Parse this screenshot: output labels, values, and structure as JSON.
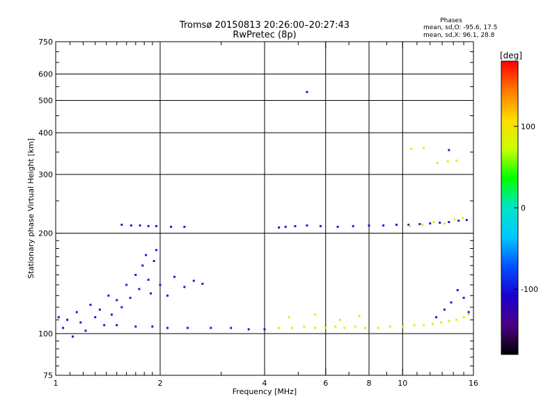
{
  "chart_data": {
    "type": "scatter",
    "title": "Tromsø 20150813 20:26:00–20:27:43",
    "subtitle": "RwPretec (8p)",
    "xlabel": "Frequency [MHz]",
    "ylabel": "Stationary phase Virtual Height [km]",
    "x_scale": "log",
    "y_scale": "log",
    "xlim": [
      1,
      16
    ],
    "ylim": [
      75,
      750
    ],
    "grid": true,
    "x_major_ticks": [
      1,
      2,
      4,
      6,
      8,
      10,
      16
    ],
    "x_tick_labels": [
      "1",
      "2",
      "4",
      "6",
      "8",
      "10",
      "16"
    ],
    "x_grid_lines": [
      2,
      4,
      6,
      8,
      10
    ],
    "x_minor_ticks": [
      1.1,
      1.2,
      1.3,
      1.4,
      1.5,
      1.6,
      1.7,
      1.8,
      1.9,
      3,
      5,
      7,
      9,
      11,
      12,
      13,
      14,
      15
    ],
    "y_major_ticks": [
      75,
      100,
      200,
      300,
      400,
      500,
      600,
      750
    ],
    "y_tick_labels": [
      "75",
      "100",
      "200",
      "300",
      "400",
      "500",
      "600",
      "750"
    ],
    "y_grid_lines": [
      100,
      200,
      300,
      400,
      500,
      600
    ],
    "y_minor_ticks": [
      80,
      85,
      90,
      95,
      110,
      120,
      130,
      140,
      150,
      160,
      170,
      180,
      190,
      250,
      350,
      450,
      550,
      650,
      700
    ],
    "stats": {
      "heading": "Phases",
      "line_o": "mean, sd,O:  -95.6, 17.5",
      "line_x": "mean, sd,X:  96.1, 28.8"
    },
    "colorbar": {
      "label": "[deg]",
      "range": [
        -180,
        180
      ],
      "ticks": [
        100,
        0,
        -100
      ],
      "tick_labels": [
        "100",
        "0",
        "-100"
      ],
      "colors": [
        "#ff0000",
        "#ff7a00",
        "#ffdc00",
        "#c8ff00",
        "#00ff00",
        "#00e6c8",
        "#00c8ff",
        "#0050ff",
        "#1a00d2",
        "#4b0082",
        "#000000"
      ]
    },
    "series": [
      {
        "name": "O",
        "phase_deg": -96,
        "points": [
          [
            1.02,
            112
          ],
          [
            1.05,
            104
          ],
          [
            1.08,
            110
          ],
          [
            1.12,
            98
          ],
          [
            1.15,
            116
          ],
          [
            1.18,
            108
          ],
          [
            1.22,
            102
          ],
          [
            1.26,
            122
          ],
          [
            1.3,
            112
          ],
          [
            1.34,
            118
          ],
          [
            1.38,
            106
          ],
          [
            1.42,
            130
          ],
          [
            1.45,
            114
          ],
          [
            1.5,
            126
          ],
          [
            1.55,
            120
          ],
          [
            1.6,
            140
          ],
          [
            1.64,
            128
          ],
          [
            1.7,
            150
          ],
          [
            1.74,
            136
          ],
          [
            1.78,
            160
          ],
          [
            1.82,
            172
          ],
          [
            1.85,
            145
          ],
          [
            1.88,
            132
          ],
          [
            1.92,
            165
          ],
          [
            1.95,
            178
          ],
          [
            2.0,
            140
          ],
          [
            2.1,
            130
          ],
          [
            2.2,
            148
          ],
          [
            2.35,
            138
          ],
          [
            2.5,
            144
          ],
          [
            2.65,
            141
          ],
          [
            1.5,
            106
          ],
          [
            1.7,
            105
          ],
          [
            1.9,
            105
          ],
          [
            2.1,
            104
          ],
          [
            2.4,
            104
          ],
          [
            2.8,
            104
          ],
          [
            3.2,
            104
          ],
          [
            3.6,
            103
          ],
          [
            4.0,
            103
          ],
          [
            1.55,
            212
          ],
          [
            1.65,
            211
          ],
          [
            1.75,
            211
          ],
          [
            1.85,
            210
          ],
          [
            1.95,
            210
          ],
          [
            2.15,
            209
          ],
          [
            2.35,
            209
          ],
          [
            4.4,
            208
          ],
          [
            4.6,
            209
          ],
          [
            4.9,
            210
          ],
          [
            5.3,
            211
          ],
          [
            5.8,
            210
          ],
          [
            6.5,
            209
          ],
          [
            7.2,
            210
          ],
          [
            8.0,
            211
          ],
          [
            8.8,
            211
          ],
          [
            9.6,
            212
          ],
          [
            10.4,
            212
          ],
          [
            11.2,
            213
          ],
          [
            12.0,
            214
          ],
          [
            12.8,
            215
          ],
          [
            13.6,
            216
          ],
          [
            14.5,
            218
          ],
          [
            15.3,
            219
          ],
          [
            12.5,
            112
          ],
          [
            13.2,
            118
          ],
          [
            13.8,
            124
          ],
          [
            14.4,
            135
          ],
          [
            15.0,
            128
          ],
          [
            15.5,
            116
          ],
          [
            5.3,
            530
          ],
          [
            13.6,
            355
          ]
        ]
      },
      {
        "name": "X",
        "phase_deg": 96,
        "points": [
          [
            4.4,
            104
          ],
          [
            4.8,
            104
          ],
          [
            5.2,
            105
          ],
          [
            5.6,
            104
          ],
          [
            6.0,
            104
          ],
          [
            6.4,
            105
          ],
          [
            6.8,
            104
          ],
          [
            7.3,
            105
          ],
          [
            7.8,
            104
          ],
          [
            8.5,
            104
          ],
          [
            9.2,
            105
          ],
          [
            10.0,
            105
          ],
          [
            10.8,
            106
          ],
          [
            11.5,
            106
          ],
          [
            12.2,
            107
          ],
          [
            12.9,
            108
          ],
          [
            13.6,
            109
          ],
          [
            14.3,
            110
          ],
          [
            15.0,
            112
          ],
          [
            15.5,
            114
          ],
          [
            4.7,
            112
          ],
          [
            5.6,
            114
          ],
          [
            6.6,
            110
          ],
          [
            7.5,
            113
          ],
          [
            10.5,
            210
          ],
          [
            11.4,
            212
          ],
          [
            12.3,
            216
          ],
          [
            13.2,
            214
          ],
          [
            14.1,
            220
          ],
          [
            14.9,
            222
          ],
          [
            10.6,
            358
          ],
          [
            11.5,
            360
          ],
          [
            12.6,
            325
          ],
          [
            13.5,
            328
          ],
          [
            14.3,
            330
          ]
        ]
      }
    ]
  }
}
